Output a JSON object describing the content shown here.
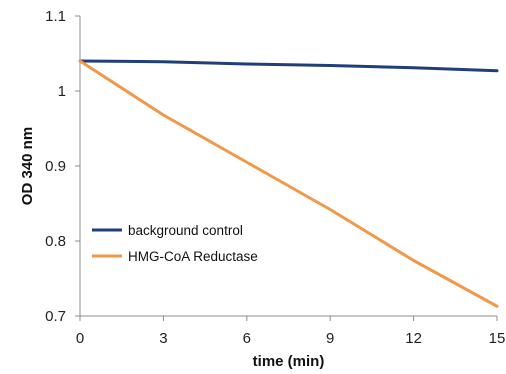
{
  "chart_data": {
    "type": "line",
    "title": "",
    "xlabel": "time (min)",
    "ylabel": "OD 340 nm",
    "xlim": [
      0,
      15
    ],
    "ylim": [
      0.7,
      1.1
    ],
    "x_ticks": [
      0,
      3,
      6,
      9,
      12,
      15
    ],
    "y_ticks": [
      0.7,
      0.8,
      0.9,
      1.0,
      1.1
    ],
    "x_tick_labels": [
      "0",
      "3",
      "6",
      "9",
      "12",
      "15"
    ],
    "y_tick_labels": [
      "0.7",
      "0.8",
      "0.9",
      "1",
      "1.1"
    ],
    "grid": false,
    "legend_position": "left-lower",
    "series": [
      {
        "name": "background control",
        "color": "#1f3f7a",
        "x": [
          0,
          3,
          6,
          9,
          12,
          15
        ],
        "y": [
          1.04,
          1.039,
          1.036,
          1.034,
          1.031,
          1.027
        ]
      },
      {
        "name": "HMG-CoA Reductase",
        "color": "#f0994a",
        "x": [
          0,
          3,
          6,
          9,
          12,
          15
        ],
        "y": [
          1.04,
          0.968,
          0.905,
          0.842,
          0.774,
          0.713
        ]
      }
    ]
  }
}
